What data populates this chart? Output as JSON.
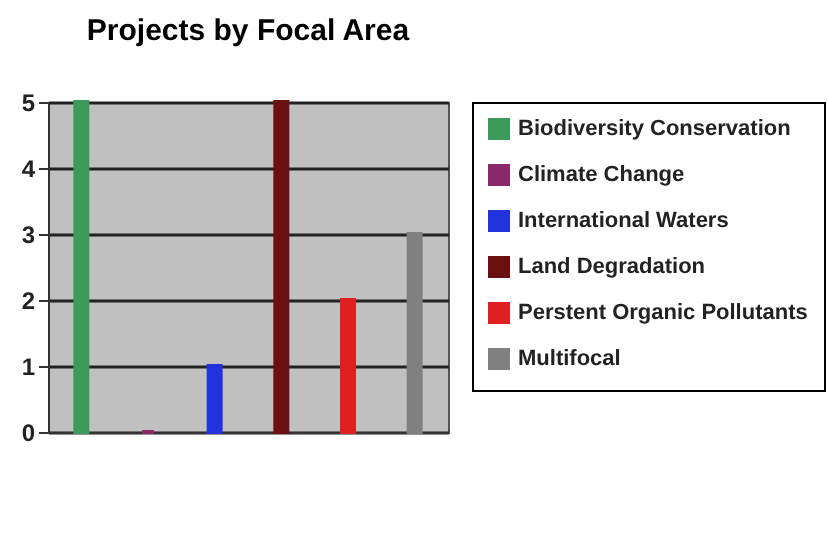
{
  "chart_data": {
    "type": "bar",
    "title": "Projects by Focal Area",
    "categories": [
      null,
      null,
      null,
      null,
      null,
      null
    ],
    "series": [
      {
        "name": "Biodiversity Conservation",
        "color": "#3c9b5a",
        "values": [
          5,
          null,
          null,
          null,
          null,
          null
        ]
      },
      {
        "name": "Climate Change",
        "color": "#8b2a6a",
        "values": [
          null,
          0,
          null,
          null,
          null,
          null
        ]
      },
      {
        "name": "International Waters",
        "color": "#2233dd",
        "values": [
          null,
          null,
          1,
          null,
          null,
          null
        ]
      },
      {
        "name": "Land Degradation",
        "color": "#6b1010",
        "values": [
          null,
          null,
          null,
          5,
          null,
          null
        ]
      },
      {
        "name": "Perstent Organic Pollutants",
        "color": "#e02020",
        "values": [
          null,
          null,
          null,
          null,
          2,
          null
        ]
      },
      {
        "name": "Multifocal",
        "color": "#808080",
        "values": [
          null,
          null,
          null,
          null,
          null,
          3
        ]
      }
    ],
    "ylim": [
      0,
      5
    ],
    "yticks": [
      0,
      1,
      2,
      3,
      4,
      5
    ],
    "grid": "y",
    "legend": "right",
    "tick_labels": "y"
  }
}
